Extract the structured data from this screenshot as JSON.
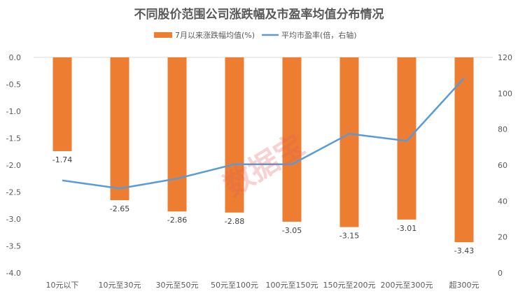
{
  "chart_data": {
    "type": "bar+line",
    "title": "不同股价范围公司涨跌幅及市盈率均值分布情况",
    "categories": [
      "10元以下",
      "10元至30元",
      "30元至50元",
      "50元至100元",
      "100元至150元",
      "150元至200元",
      "200元至300元",
      "超300元"
    ],
    "series": [
      {
        "name": "7月以来涨跌幅均值(%)",
        "type": "bar",
        "axis": "left",
        "color": "#ED7D31",
        "values": [
          -1.74,
          -2.65,
          -2.86,
          -2.88,
          -3.05,
          -3.15,
          -3.01,
          -3.43
        ],
        "labels": [
          "-1.74",
          "-2.65",
          "-2.86",
          "-2.88",
          "-3.05",
          "-3.15",
          "-3.01",
          "-3.43"
        ]
      },
      {
        "name": "平均市盈率(倍，右轴)",
        "type": "line",
        "axis": "right",
        "color": "#5B9BD5",
        "values": [
          51.5,
          47,
          52.5,
          60.5,
          60.5,
          77.5,
          73.5,
          108.5
        ]
      }
    ],
    "left_axis": {
      "ylim": [
        -4.0,
        0.0
      ],
      "ticks": [
        0,
        -0.5,
        -1,
        -1.5,
        -2,
        -2.5,
        -3,
        -3.5,
        -4
      ],
      "tick_labels": [
        "0.0",
        "-0.5",
        "-1.0",
        "-1.5",
        "-2.0",
        "-2.5",
        "-3.0",
        "-3.5",
        "-4.0"
      ]
    },
    "right_axis": {
      "ylim": [
        0,
        120
      ],
      "ticks": [
        120,
        100,
        80,
        60,
        40,
        20,
        0
      ],
      "tick_labels": [
        "120",
        "100",
        "80",
        "60",
        "40",
        "20",
        "0"
      ]
    },
    "legend_position": "top",
    "grid": false
  },
  "watermark": "数据宝",
  "colors": {
    "text": "#595959",
    "axis_line": "#d9d9d9"
  }
}
